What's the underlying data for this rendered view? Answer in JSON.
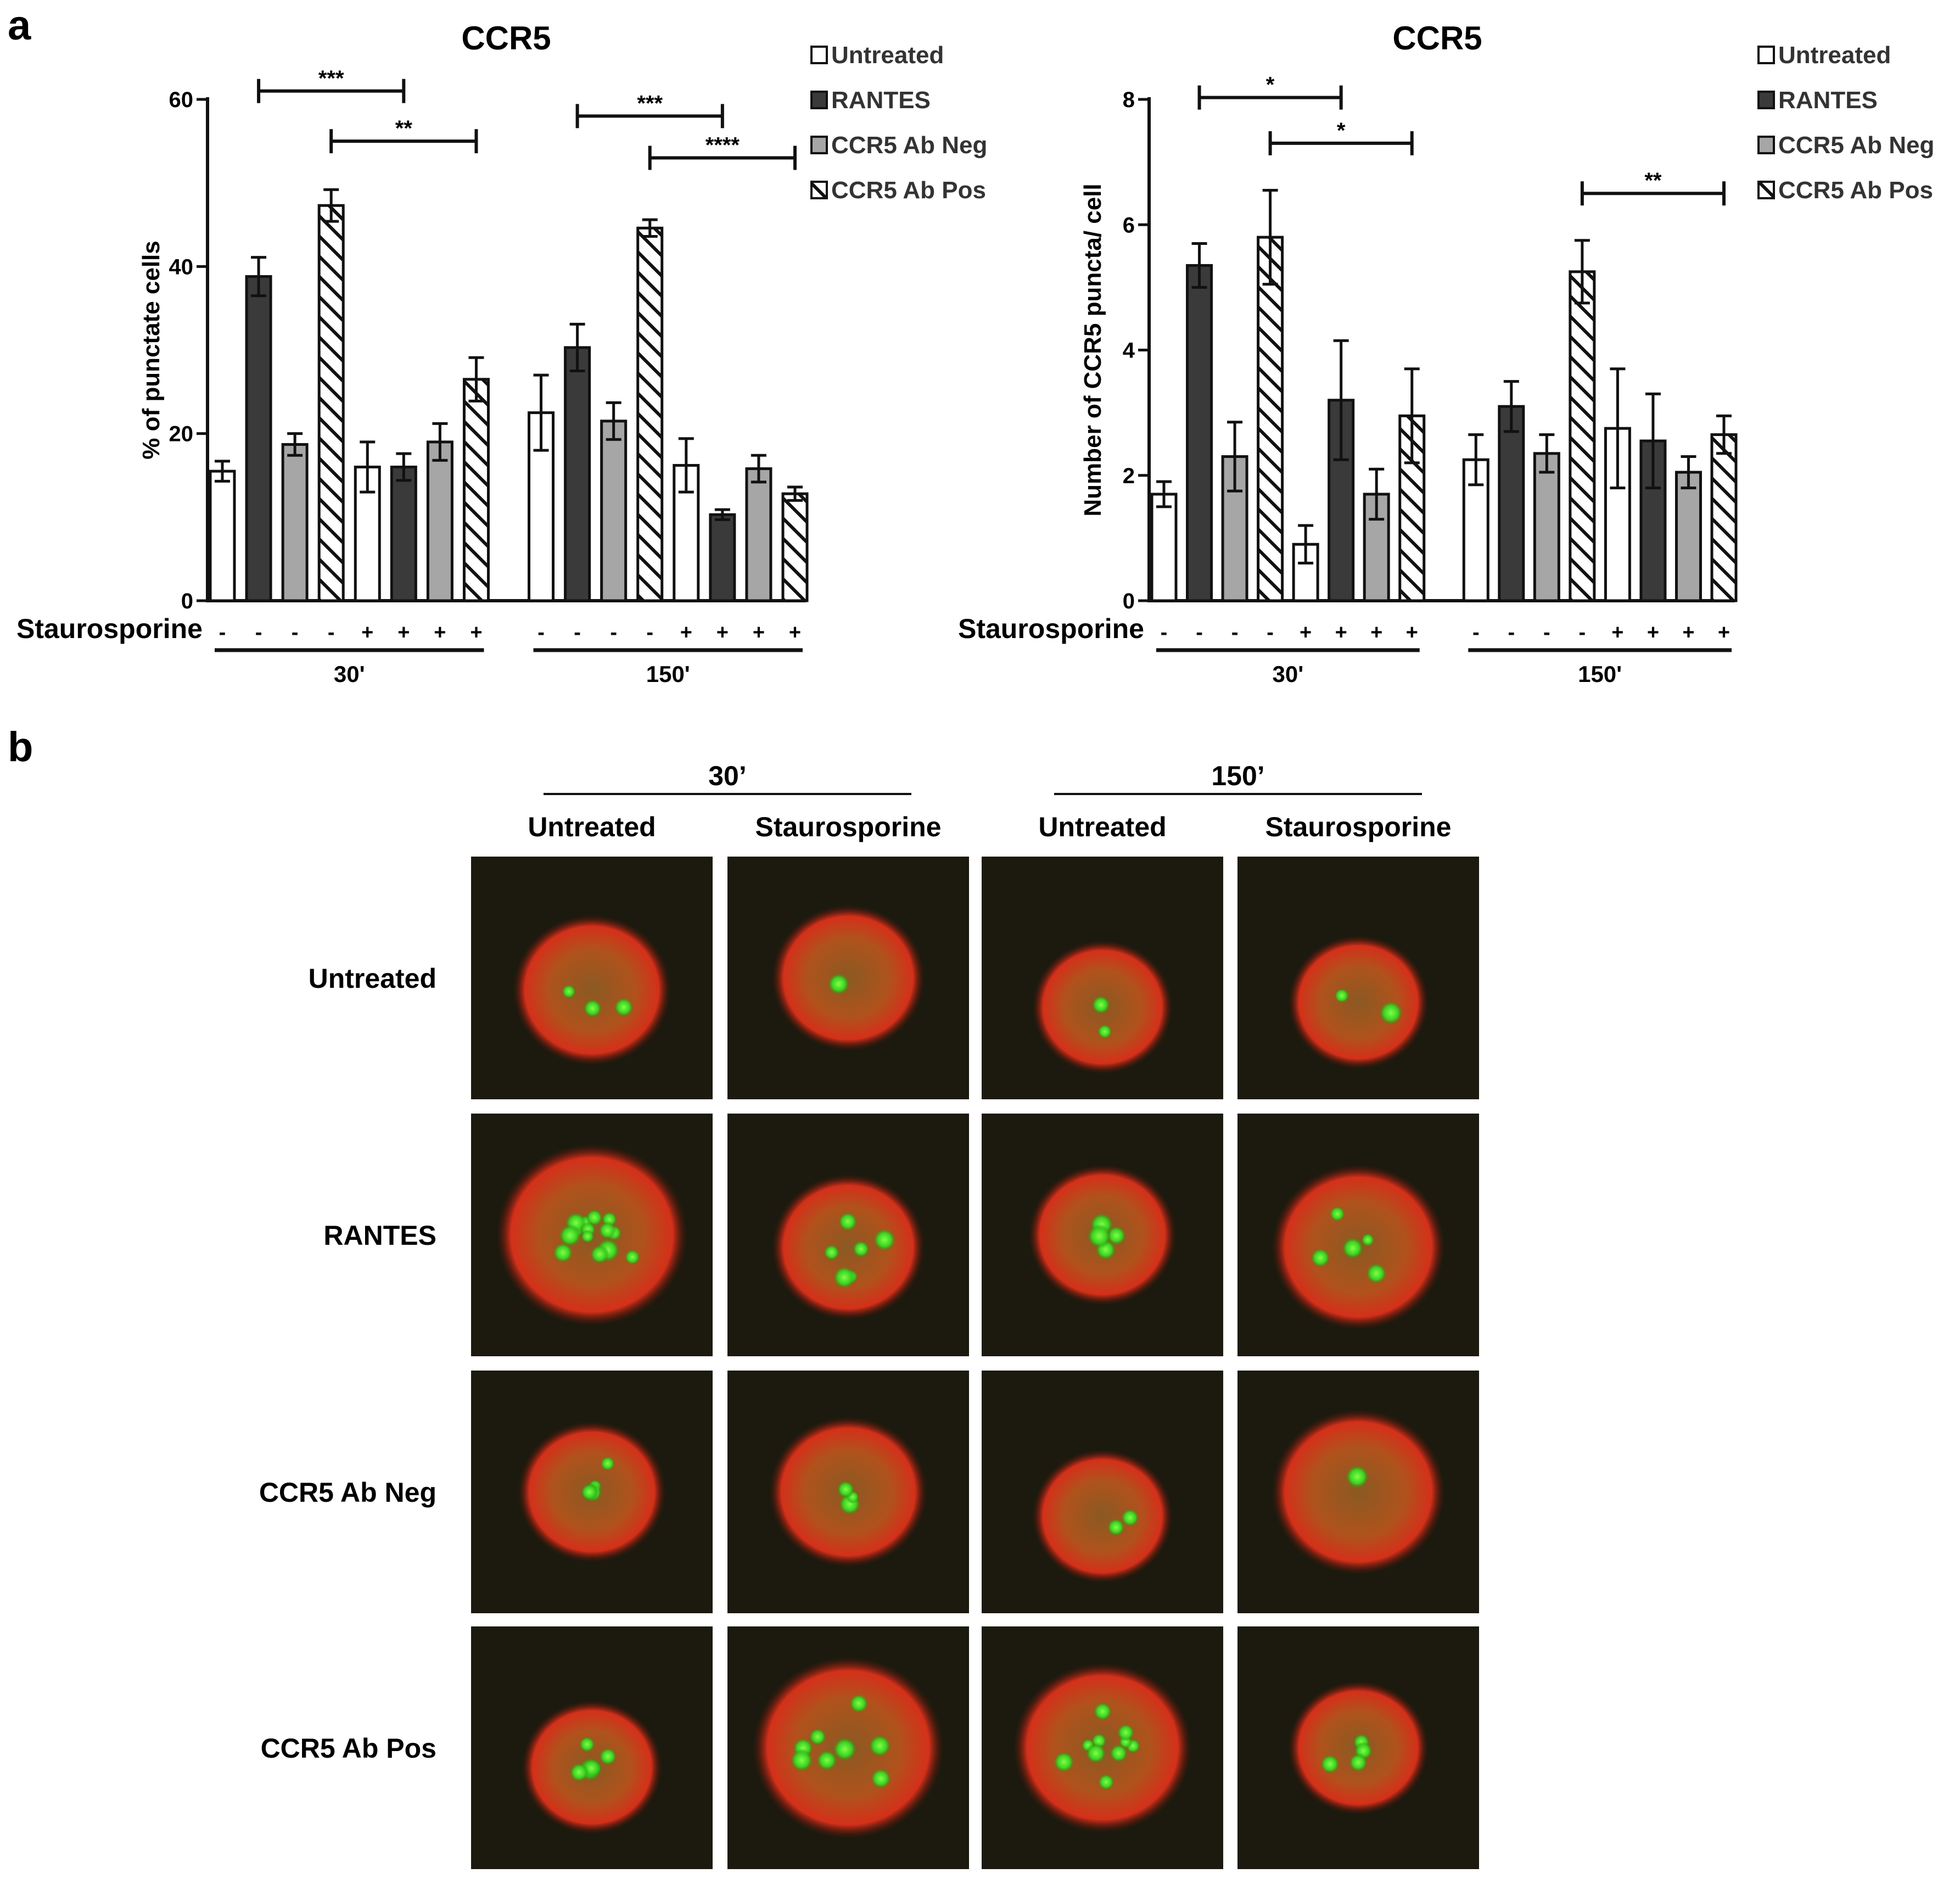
{
  "panel_a_label": "a",
  "panel_b_label": "b",
  "legend": {
    "items": [
      {
        "label": "Untreated",
        "style": "white"
      },
      {
        "label": "RANTES",
        "style": "dark"
      },
      {
        "label": "CCR5 Ab Neg",
        "style": "gray"
      },
      {
        "label": "CCR5 Ab Pos",
        "style": "hatched"
      }
    ]
  },
  "colors": {
    "dark": "#3a3a3a",
    "gray": "#a6a6a6",
    "white": "#ffffff",
    "axis": "#111111"
  },
  "chart_data": [
    {
      "type": "bar",
      "title": "CCR5",
      "ylabel": "% of punctate cells",
      "ylim": [
        0,
        60
      ],
      "yticks": [
        0,
        20,
        40,
        60
      ],
      "row_label": "Staurosporine",
      "signs": [
        "-",
        "-",
        "-",
        "-",
        "+",
        "+",
        "+",
        "+",
        "-",
        "-",
        "-",
        "-",
        "+",
        "+",
        "+",
        "+"
      ],
      "groups": [
        "30'",
        "150'"
      ],
      "series": [
        {
          "name": "Untreated",
          "values": [
            15.5,
            16,
            22.5,
            16.2
          ],
          "errors": [
            1.2,
            3,
            4.5,
            3.2
          ]
        },
        {
          "name": "RANTES",
          "values": [
            38.8,
            16,
            30.3,
            10.3
          ],
          "errors": [
            2.3,
            1.6,
            2.8,
            0.6
          ]
        },
        {
          "name": "CCR5 Ab Neg",
          "values": [
            18.7,
            19,
            21.5,
            15.8
          ],
          "errors": [
            1.3,
            2.2,
            2.2,
            1.6
          ]
        },
        {
          "name": "CCR5 Ab Pos",
          "values": [
            47.3,
            26.5,
            44.6,
            12.8
          ],
          "errors": [
            1.9,
            2.6,
            1,
            0.8
          ]
        }
      ],
      "significance": [
        {
          "from": 1,
          "to": 5,
          "label": "***",
          "y": 61
        },
        {
          "from": 3,
          "to": 7,
          "label": "**",
          "y": 55
        },
        {
          "from": 9,
          "to": 13,
          "label": "***",
          "y": 58
        },
        {
          "from": 11,
          "to": 15,
          "label": "****",
          "y": 53
        }
      ]
    },
    {
      "type": "bar",
      "title": "CCR5",
      "ylabel": "Number of CCR5 puncta/ cell",
      "ylim": [
        0,
        8
      ],
      "yticks": [
        0,
        2,
        4,
        6,
        8
      ],
      "row_label": "Staurosporine",
      "signs": [
        "-",
        "-",
        "-",
        "-",
        "+",
        "+",
        "+",
        "+",
        "-",
        "-",
        "-",
        "-",
        "+",
        "+",
        "+",
        "+"
      ],
      "groups": [
        "30'",
        "150'"
      ],
      "series": [
        {
          "name": "Untreated",
          "values": [
            1.7,
            0.9,
            2.25,
            2.75
          ],
          "errors": [
            0.2,
            0.3,
            0.4,
            0.95
          ]
        },
        {
          "name": "RANTES",
          "values": [
            5.35,
            3.2,
            3.1,
            2.55
          ],
          "errors": [
            0.35,
            0.95,
            0.4,
            0.75
          ]
        },
        {
          "name": "CCR5 Ab Neg",
          "values": [
            2.3,
            1.7,
            2.35,
            2.05
          ],
          "errors": [
            0.55,
            0.4,
            0.3,
            0.25
          ]
        },
        {
          "name": "CCR5 Ab Pos",
          "values": [
            5.8,
            2.95,
            5.25,
            2.65
          ],
          "errors": [
            0.75,
            0.75,
            0.5,
            0.3
          ]
        }
      ],
      "significance": [
        {
          "from": 1,
          "to": 5,
          "label": "*",
          "y": 8.03
        },
        {
          "from": 3,
          "to": 7,
          "label": "*",
          "y": 7.3
        },
        {
          "from": 11,
          "to": 15,
          "label": "**",
          "y": 6.5
        }
      ]
    }
  ],
  "panel_b": {
    "time_groups": [
      "30’",
      "150’"
    ],
    "column_labels": [
      "Untreated",
      "Staurosporine",
      "Untreated",
      "Staurosporine"
    ],
    "row_labels": [
      "Untreated",
      "RANTES",
      "CCR5 Ab Neg",
      "CCR5 Ab Pos"
    ],
    "cells": [
      [
        {
          "n": 3,
          "size": 0.62,
          "dy": 0.05
        },
        {
          "n": 1,
          "size": 0.6,
          "dy": 0.0
        },
        {
          "n": 2,
          "size": 0.55,
          "dy": 0.12
        },
        {
          "n": 2,
          "size": 0.55,
          "dy": 0.1
        }
      ],
      [
        {
          "n": 14,
          "size": 0.75,
          "dy": 0.0
        },
        {
          "n": 6,
          "size": 0.6,
          "dy": 0.05
        },
        {
          "n": 4,
          "size": 0.58,
          "dy": 0.0
        },
        {
          "n": 5,
          "size": 0.68,
          "dy": 0.05
        }
      ],
      [
        {
          "n": 5,
          "size": 0.58,
          "dy": 0.0
        },
        {
          "n": 3,
          "size": 0.62,
          "dy": 0.0
        },
        {
          "n": 2,
          "size": 0.55,
          "dy": 0.1
        },
        {
          "n": 1,
          "size": 0.68,
          "dy": 0.0
        }
      ],
      [
        {
          "n": 6,
          "size": 0.55,
          "dy": 0.08
        },
        {
          "n": 8,
          "size": 0.75,
          "dy": 0.0
        },
        {
          "n": 10,
          "size": 0.7,
          "dy": 0.0
        },
        {
          "n": 4,
          "size": 0.55,
          "dy": 0.0
        }
      ]
    ]
  }
}
